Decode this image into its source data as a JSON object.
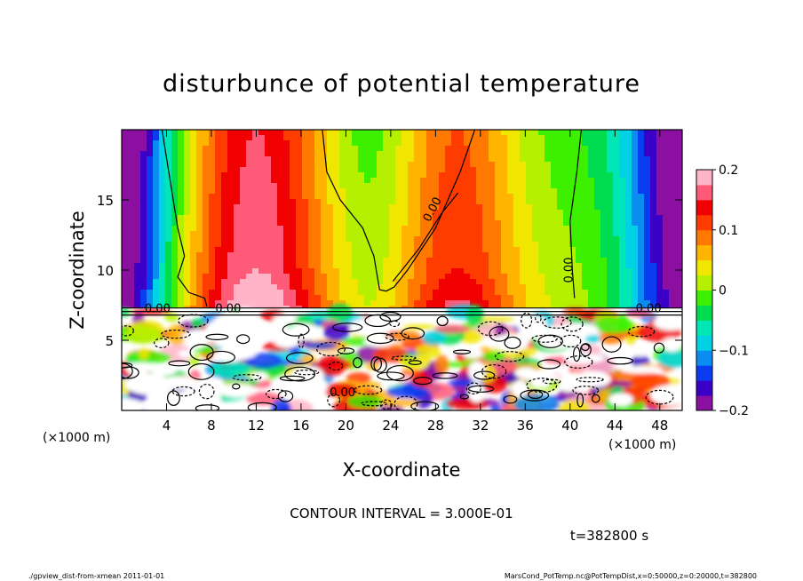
{
  "chart_data": {
    "type": "heatmap",
    "title": "disturbunce of potential temperature",
    "xlabel": "X-coordinate",
    "ylabel": "Z-coordinate",
    "x_unit_note": "(×1000 m)",
    "y_unit_note": "(×1000 m)",
    "xlim": [
      0,
      50
    ],
    "ylim": [
      0,
      20
    ],
    "x_ticks": [
      4,
      8,
      12,
      16,
      20,
      24,
      28,
      32,
      36,
      40,
      44,
      48
    ],
    "y_ticks": [
      5,
      10,
      15
    ],
    "colorbar": {
      "ticks": [
        0.2,
        0.1,
        0,
        -0.1,
        -0.2
      ],
      "tick_labels": [
        "0.2",
        "0.1",
        "0",
        "−0.1",
        "−0.2"
      ],
      "range": [
        -0.2,
        0.2
      ],
      "colors": [
        "#8b0fa0",
        "#3a00c8",
        "#0a3cf0",
        "#0a8cf0",
        "#00d2e6",
        "#00e6b4",
        "#00dc50",
        "#3cf000",
        "#b4f000",
        "#f0e600",
        "#ffb400",
        "#ff7800",
        "#ff3c00",
        "#f00000",
        "#ff5a78",
        "#ffb4c8"
      ]
    },
    "contour_labels": [
      "0.00"
    ],
    "contour_interval_text": "CONTOUR INTERVAL = 3.000E-01",
    "time_text": "t=382800 s"
  },
  "footer": {
    "left": "./gpview_dist-from-xmean  2011-01-01",
    "right": "MarsCond_PotTemp.nc@PotTempDist,x=0:50000,z=0:20000,t=382800"
  },
  "colors": {
    "frame": "#000000",
    "white_gap": "#ffffff"
  }
}
